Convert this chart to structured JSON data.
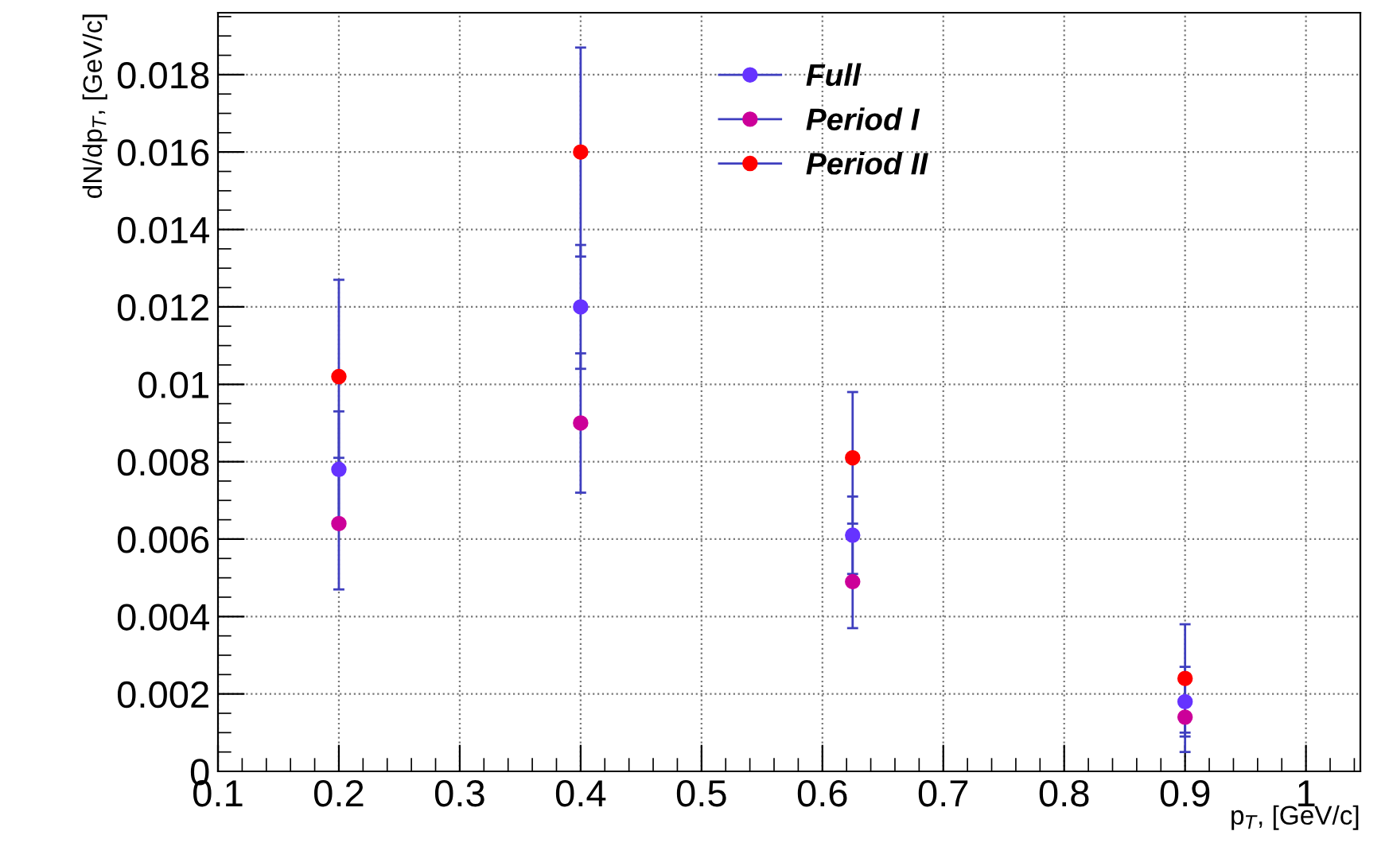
{
  "chart_data": {
    "type": "scatter",
    "xlabel": "p$_{T}$, [GeV/c]",
    "ylabel": "dN/dp$_{T}$, [GeV/c]",
    "x": [
      0.2,
      0.4,
      0.625,
      0.9
    ],
    "series": [
      {
        "name": "Full",
        "color": "#6633ff",
        "values": [
          0.0078,
          0.012,
          0.0061,
          0.0018
        ],
        "errors": [
          0.0015,
          0.0016,
          0.001,
          0.0009
        ]
      },
      {
        "name": "Period I",
        "color": "#cc0099",
        "values": [
          0.0064,
          0.009,
          0.0049,
          0.0014
        ],
        "errors": [
          0.0017,
          0.0018,
          0.0012,
          0.0009
        ]
      },
      {
        "name": "Period II",
        "color": "#ff0000",
        "values": [
          0.0102,
          0.016,
          0.0081,
          0.0024
        ],
        "errors": [
          0.0025,
          0.0027,
          0.0017,
          0.0014
        ]
      }
    ],
    "xlim": [
      0.1,
      1.045
    ],
    "ylim": [
      0,
      0.0196
    ],
    "xticks": [
      0.1,
      0.2,
      0.3,
      0.4,
      0.5,
      0.6,
      0.7,
      0.8,
      0.9,
      1
    ],
    "yticks": [
      0,
      0.002,
      0.004,
      0.006,
      0.008,
      0.01,
      0.012,
      0.014,
      0.016,
      0.018
    ],
    "grid": true,
    "legend": "top",
    "marker": "circle"
  }
}
